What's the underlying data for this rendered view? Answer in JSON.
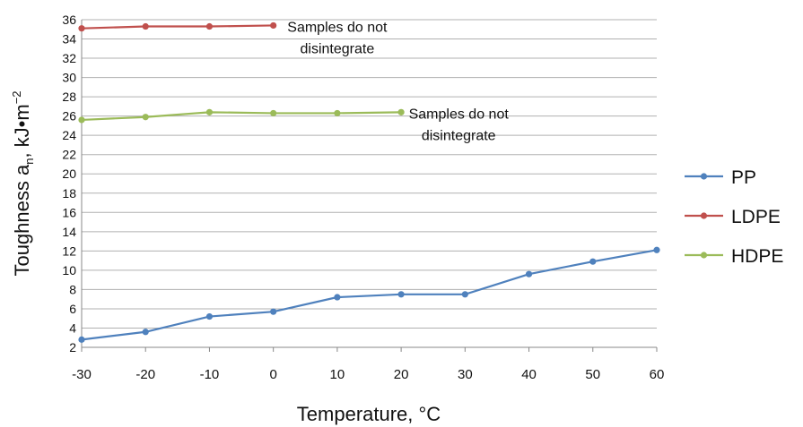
{
  "chart_data": {
    "type": "line",
    "xlabel": "Temperature, °C",
    "ylabel": "Toughness a",
    "ylabel_sub": "n",
    "ylabel_tail": ", kJ•m",
    "ylabel_sup": "−2",
    "xlim": [
      -30,
      60
    ],
    "ylim": [
      2,
      36
    ],
    "x_ticks": [
      "-30",
      "-20",
      "-10",
      "0",
      "10",
      "20",
      "30",
      "40",
      "50",
      "60"
    ],
    "y_ticks": [
      "2",
      "4",
      "6",
      "8",
      "10",
      "12",
      "14",
      "16",
      "18",
      "20",
      "22",
      "24",
      "26",
      "28",
      "30",
      "32",
      "34",
      "36"
    ],
    "grid": true,
    "legend_position": "right",
    "series": [
      {
        "name": "PP",
        "color": "#4f81bd",
        "x": [
          -30,
          -20,
          -10,
          0,
          10,
          20,
          30,
          40,
          50,
          60
        ],
        "y": [
          2.8,
          3.6,
          5.2,
          5.7,
          7.2,
          7.5,
          7.5,
          9.6,
          10.9,
          12.1
        ]
      },
      {
        "name": "LDPE",
        "color": "#c0504d",
        "x": [
          -30,
          -20,
          -10,
          0
        ],
        "y": [
          35.1,
          35.3,
          35.3,
          35.4
        ]
      },
      {
        "name": "HDPE",
        "color": "#9bbb59",
        "x": [
          -30,
          -20,
          -10,
          0,
          10,
          20
        ],
        "y": [
          25.6,
          25.9,
          26.4,
          26.3,
          26.3,
          26.4
        ]
      }
    ],
    "annotations": [
      {
        "lines": [
          "Samples do not",
          "disintegrate"
        ],
        "x": 10,
        "y": 35.4
      },
      {
        "lines": [
          "Samples do not",
          "disintegrate"
        ],
        "x": 29,
        "y": 26.4
      }
    ]
  }
}
